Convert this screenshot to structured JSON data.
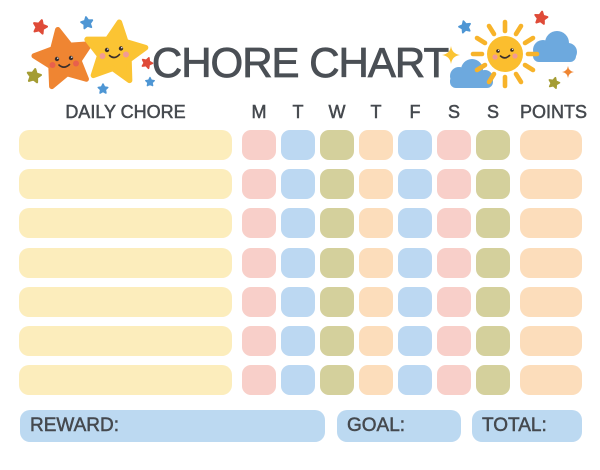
{
  "title": "CHORE CHART",
  "palette": {
    "cream": "#FCEDBC",
    "pink": "#F8CFC9",
    "blue": "#BCD8F2",
    "olive": "#D4D09C",
    "peach": "#FCDDBB",
    "footerBlue": "#BCD9F1",
    "ink": "#45494E",
    "titleInk": "#4A4F55",
    "starOrange": "#EF8532",
    "starYellow": "#FBC433",
    "sunYellow": "#FBBE2E",
    "rayGold": "#F7B32A",
    "cloudBlue": "#6DA9DE",
    "miniRed": "#DF4B38",
    "miniBlue": "#4E96D4",
    "miniOlive": "#A49C33",
    "cheekPink": "#F29B93",
    "cheekRed": "#E8604C",
    "eyeDark": "#3A2E2B"
  },
  "table": {
    "chore_header": "DAILY CHORE",
    "days": [
      "M",
      "T",
      "W",
      "T",
      "F",
      "S",
      "S"
    ],
    "points_header": "POINTS",
    "row_count": 7,
    "day_cell_colors": [
      "pink",
      "blue",
      "olive",
      "peach",
      "blue",
      "pink",
      "olive"
    ],
    "points_cell_color": "peach"
  },
  "footer": {
    "reward_label": "REWARD:",
    "goal_label": "GOAL:",
    "total_label": "TOTAL:"
  },
  "decorations": {
    "left": "smiling-stars",
    "right": "smiling-sun-with-clouds"
  }
}
